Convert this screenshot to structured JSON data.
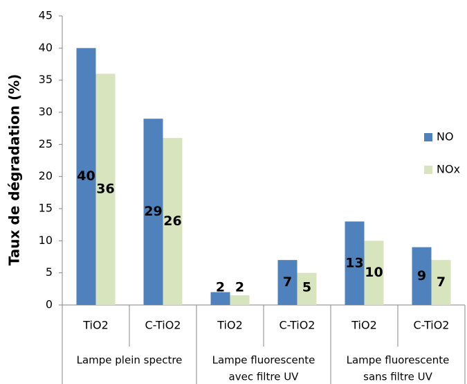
{
  "chart_data": {
    "type": "bar",
    "y_label": "Taux de dégradation (%)",
    "categories": [
      "TiO2",
      "C-TiO2",
      "TiO2",
      "C-TiO2",
      "TiO2",
      "C-TiO2"
    ],
    "groups": [
      [
        "Lampe plein spectre"
      ],
      [
        "Lampe fluorescente",
        "avec filtre UV"
      ],
      [
        "Lampe fluorescente",
        "sans filtre UV"
      ]
    ],
    "series": [
      {
        "name": "NO",
        "color": "#4f81bd",
        "values": [
          40,
          29,
          2,
          7,
          13,
          9
        ]
      },
      {
        "name": "NOx",
        "color": "#d7e4bd",
        "values": [
          36,
          26,
          1.5,
          5,
          10,
          7
        ],
        "value_labels": [
          "36",
          "26",
          "2",
          "5",
          "10",
          "7"
        ]
      }
    ],
    "ylim": [
      0,
      45
    ],
    "yticks": [
      0,
      5,
      10,
      15,
      20,
      25,
      30,
      35,
      40,
      45
    ],
    "legend": "right"
  }
}
